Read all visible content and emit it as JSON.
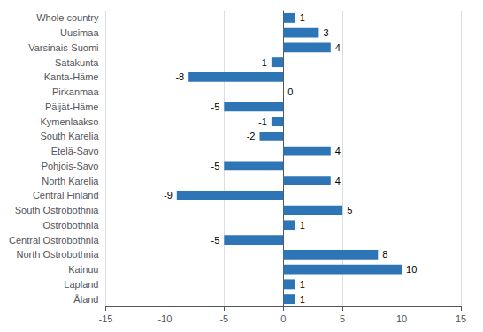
{
  "chart_data": {
    "type": "bar",
    "orientation": "horizontal",
    "categories": [
      "Åland",
      "Lapland",
      "Kainuu",
      "North Ostrobothnia",
      "Central Ostrobothnia",
      "Ostrobothnia",
      "South Ostrobothnia",
      "Central Finland",
      "North Karelia",
      "Pohjois-Savo",
      "Etelä-Savo",
      "South Karelia",
      "Kymenlaakso",
      "Päijät-Häme",
      "Pirkanmaa",
      "Kanta-Häme",
      "Satakunta",
      "Varsinais-Suomi",
      "Uusimaa",
      "Whole country"
    ],
    "values": [
      1,
      1,
      10,
      8,
      -5,
      1,
      5,
      -9,
      4,
      -5,
      4,
      -2,
      -1,
      -5,
      0,
      -8,
      -1,
      4,
      3,
      1
    ],
    "color": "#2E75B6",
    "xlim": [
      -15,
      15
    ],
    "xticks": [
      -15,
      -10,
      -5,
      0,
      5,
      10,
      15
    ],
    "grid": true,
    "data_labels": true
  }
}
